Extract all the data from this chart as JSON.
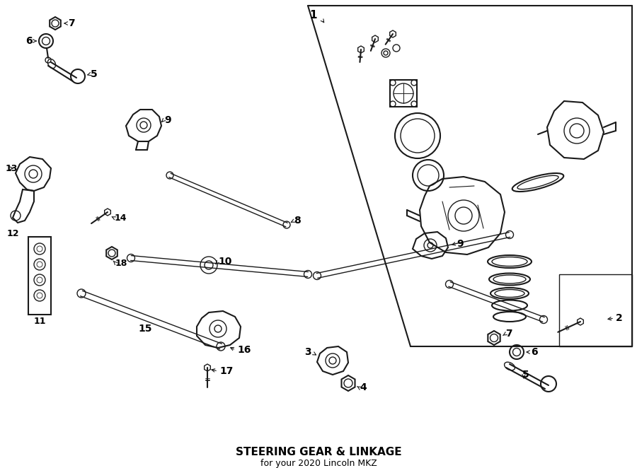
{
  "title": "STEERING GEAR & LINKAGE",
  "subtitle": "for your 2020 Lincoln MKZ",
  "bg_color": "#ffffff",
  "line_color": "#1a1a1a",
  "text_color": "#000000",
  "fig_width": 9.0,
  "fig_height": 6.62
}
